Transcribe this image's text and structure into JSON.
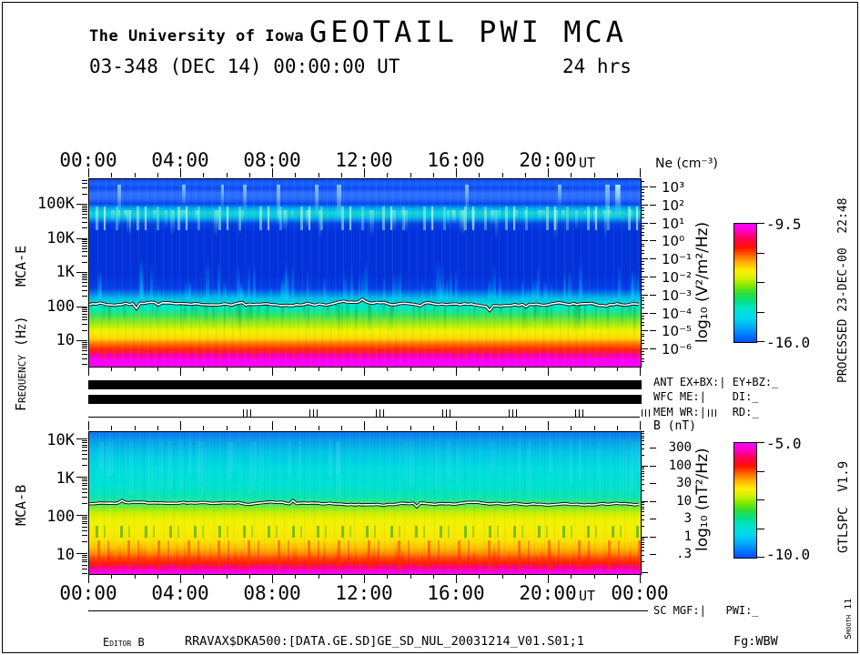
{
  "header": {
    "institution": "The University of Iowa",
    "title": "GEOTAIL PWI MCA",
    "date_line": "03-348 (DEC 14) 00:00:00 UT",
    "duration": "24 hrs"
  },
  "axes": {
    "time_ticks": [
      "00:00",
      "04:00",
      "08:00",
      "12:00",
      "16:00",
      "20:00"
    ],
    "time_unit": "UT",
    "time_end": "00:00",
    "freq_label": "Frequency (Hz)",
    "mca_e_label": "MCA-E",
    "mca_b_label": "MCA-B",
    "mca_e_freq_ticks": [
      "100K",
      "10K",
      "1K",
      "100",
      "10"
    ],
    "mca_b_freq_ticks": [
      "10K",
      "1K",
      "100",
      "10"
    ]
  },
  "ne_scale": {
    "title": "Ne (cm⁻³)",
    "ticks": [
      "10³",
      "10²",
      "10¹",
      "10⁰",
      "10⁻¹",
      "10⁻²",
      "10⁻³",
      "10⁻⁴",
      "10⁻⁵",
      "10⁻⁶"
    ]
  },
  "b_scale": {
    "title": "B (nT)",
    "ticks": [
      "300",
      "100",
      "30",
      "10",
      "3",
      "1",
      ".3"
    ]
  },
  "colorbar_e": {
    "label": "log₁₀ (V²/m²/Hz)",
    "max": "-9.5",
    "min": "-16.0"
  },
  "colorbar_b": {
    "label": "log₁₀ (nT²/Hz)",
    "max": "-5.0",
    "min": "-10.0"
  },
  "status": {
    "ant": "ANT EX+BX:| EY+BZ:_",
    "wfc": "WFC ME:|    DI:_",
    "mem": "MEM WR:|    RD:_",
    "sc": "SC MGF:|   PWI:_"
  },
  "margin": {
    "processed": "PROCESSED 23-DEC-00  22:48",
    "program": "GTLSPC  V1.9",
    "smooth": "Smooth 11"
  },
  "footer": {
    "editor": "Editor B",
    "file": "RRAVAX$DKA500:[DATA.GE.SD]GE_SD_NUL_20031214_V01.S01;1",
    "fg": "Fg:WBW"
  },
  "chart_data": [
    {
      "type": "heatmap",
      "name": "MCA-E electric field spectrogram",
      "title": "GEOTAIL PWI MCA  03-348 (DEC 14) 00:00:00 UT  24 hrs",
      "x": {
        "label": "UT",
        "hours": 24,
        "tick_labels": [
          "00:00",
          "04:00",
          "08:00",
          "12:00",
          "16:00",
          "20:00"
        ],
        "minor_tick_every_hours": 1,
        "major_tick_every_hours": 4
      },
      "y": {
        "label": "Frequency (Hz)",
        "scale": "log",
        "tick_labels": [
          "100K",
          "10K",
          "1K",
          "100",
          "10"
        ],
        "approx_range_hz": [
          2,
          400000
        ]
      },
      "z": {
        "label": "log₁₀ (V²/m²/Hz)",
        "min": -16.0,
        "max": -9.5,
        "palette": "rainbow, magenta=high intensity, blue=low"
      },
      "right_scale": {
        "label": "Ne (cm⁻³)",
        "tick_labels": [
          "10³",
          "10²",
          "10¹",
          "10⁰",
          "10⁻¹",
          "10⁻²",
          "10⁻³",
          "10⁻⁴",
          "10⁻⁵",
          "10⁻⁶"
        ]
      },
      "legend_position": "right colorbar",
      "grid": false,
      "features": [
        "blue background above ~30 kHz with intermittent brighter cyan vertical streaks (strongest ~12:00-17:00)",
        "patchy cyan/green emission band near 10-30 kHz lasting all 24 hrs",
        "dark deep-blue low-intensity band from ~300 Hz to ~10 kHz with faint cyan vertical tendrils",
        "white overlay trace (plasma frequency / Ne line) near 150 Hz, roughly constant all day",
        "intense broadband noise below ~100 Hz: green -> yellow -> red -> magenta toward 10 Hz, magenta floor below ~8 Hz"
      ]
    },
    {
      "type": "heatmap",
      "name": "MCA-B magnetic field spectrogram",
      "x": {
        "label": "UT",
        "hours": 24,
        "tick_labels": [
          "00:00",
          "04:00",
          "08:00",
          "12:00",
          "16:00",
          "20:00",
          "00:00"
        ],
        "minor_tick_every_hours": 1,
        "major_tick_every_hours": 4
      },
      "y": {
        "label": "Frequency (Hz)",
        "scale": "log",
        "tick_labels": [
          "10K",
          "1K",
          "100",
          "10"
        ],
        "approx_range_hz": [
          2,
          20000
        ]
      },
      "z": {
        "label": "log₁₀ (nT²/Hz)",
        "min": -10.0,
        "max": -5.0,
        "palette": "rainbow, magenta=high intensity, blue=low"
      },
      "right_scale": {
        "label": "B (nT)",
        "tick_labels": [
          "300",
          "100",
          "30",
          "10",
          "3",
          "1",
          ".3"
        ]
      },
      "legend_position": "right colorbar",
      "grid": false,
      "features": [
        "smooth blue-to-cyan background from ~10 kHz down to ~300 Hz",
        "white overlay trace (|B| magnitude line) near 200 Hz, roughly constant all day",
        "green-to-yellow transition immediately below the trace",
        "yellow band with dark-green vertical dropouts near 30-60 Hz",
        "red and magenta broadband bursts below ~10 Hz for the full 24 hrs"
      ]
    }
  ]
}
